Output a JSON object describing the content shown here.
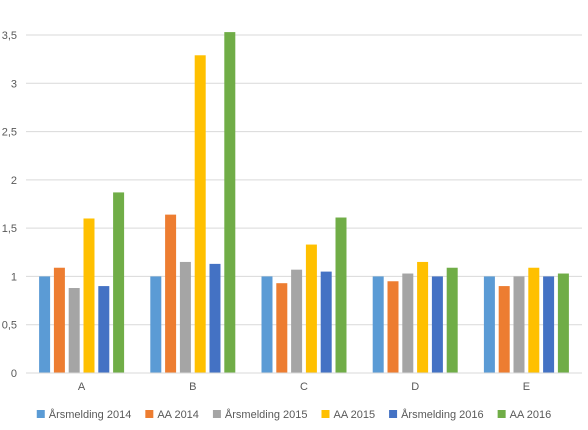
{
  "chart_data": {
    "type": "bar",
    "categories": [
      "A",
      "B",
      "C",
      "D",
      "E"
    ],
    "series": [
      {
        "name": "Årsmelding 2014",
        "color": "#5B9BD5",
        "values": [
          1.0,
          1.0,
          1.0,
          1.0,
          1.0
        ]
      },
      {
        "name": "AA 2014",
        "color": "#ED7D31",
        "values": [
          1.09,
          1.64,
          0.93,
          0.95,
          0.9
        ]
      },
      {
        "name": "Årsmelding 2015",
        "color": "#A5A5A5",
        "values": [
          0.88,
          1.15,
          1.07,
          1.03,
          1.0
        ]
      },
      {
        "name": "AA 2015",
        "color": "#FFC000",
        "values": [
          1.6,
          3.29,
          1.33,
          1.15,
          1.09
        ]
      },
      {
        "name": "Årsmelding 2016",
        "color": "#4472C4",
        "values": [
          0.9,
          1.13,
          1.05,
          1.0,
          1.0
        ]
      },
      {
        "name": "AA 2016",
        "color": "#70AD47",
        "values": [
          1.87,
          3.53,
          1.61,
          1.09,
          1.03
        ]
      }
    ],
    "y_ticks": [
      "0",
      "0,5",
      "1",
      "1,5",
      "2",
      "2,5",
      "3",
      "3,5"
    ],
    "ylim": [
      0,
      3.5
    ],
    "grid": true,
    "legend_position": "bottom",
    "title": "",
    "xlabel": "",
    "ylabel": ""
  }
}
